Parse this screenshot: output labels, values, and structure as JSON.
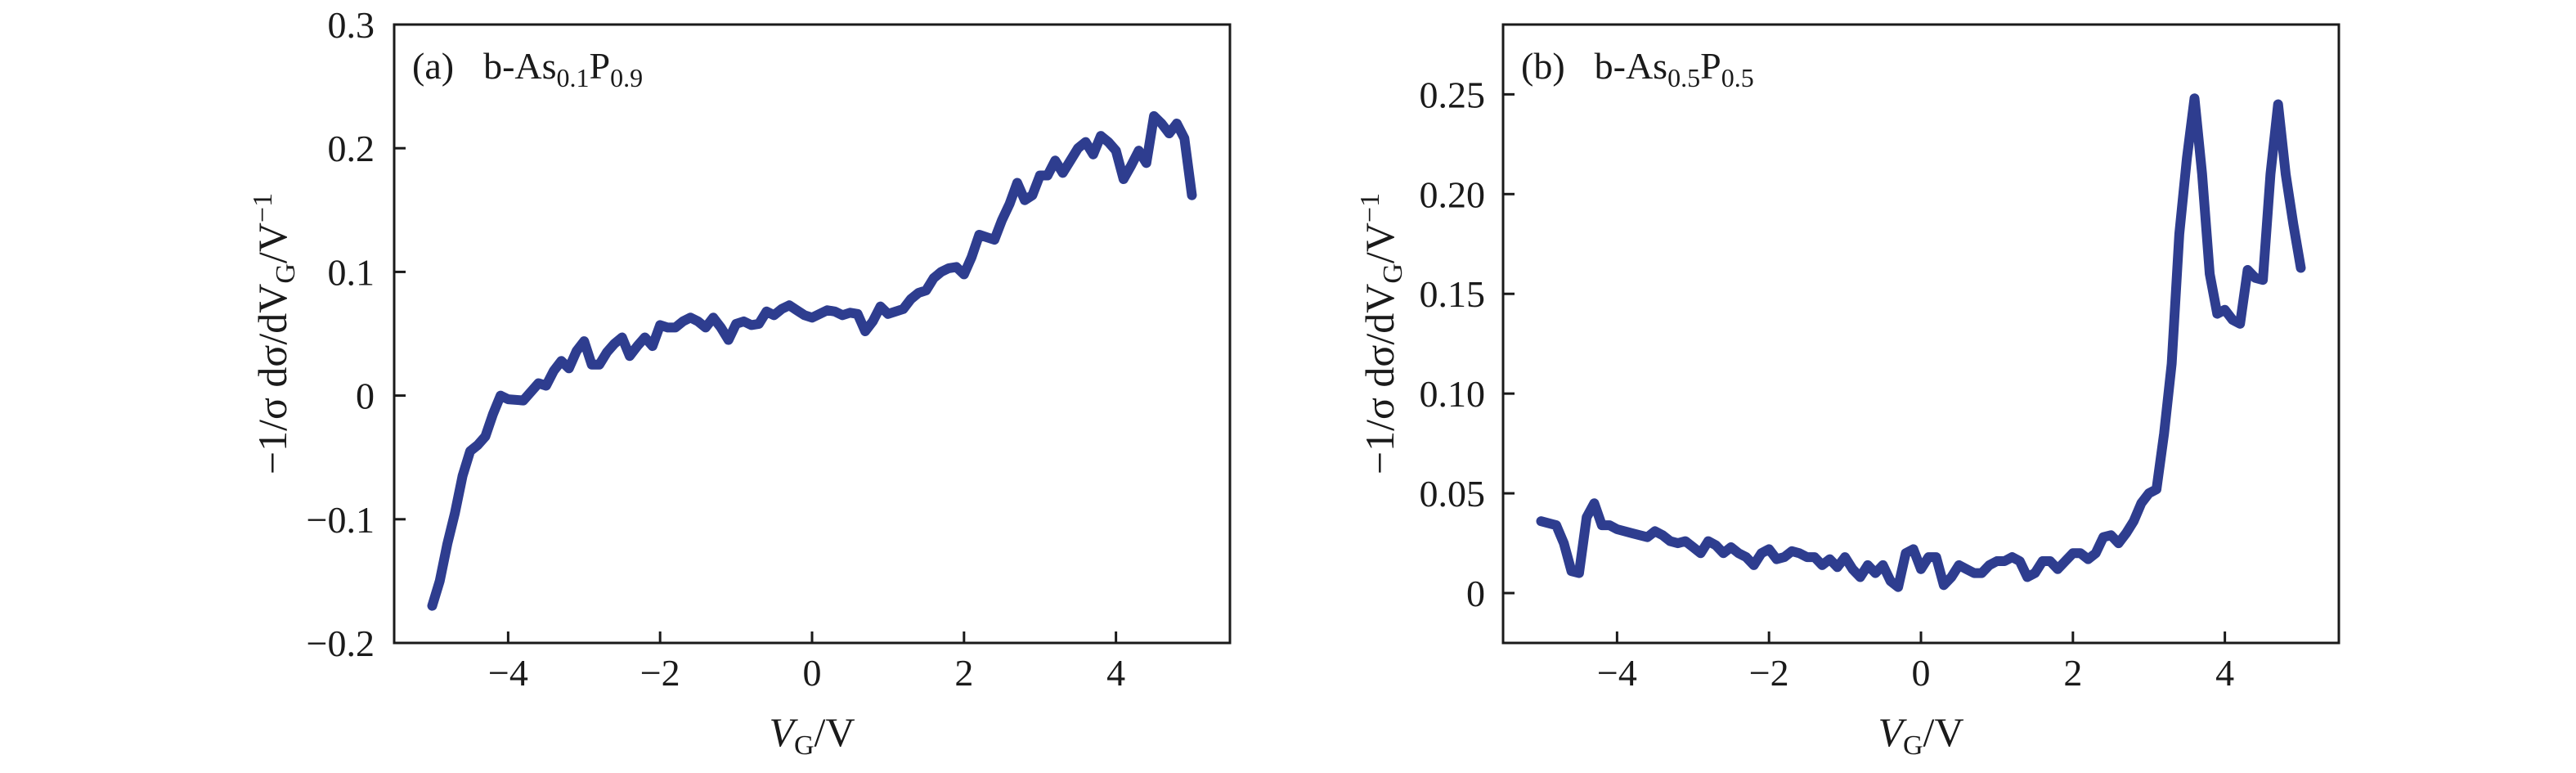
{
  "chart_data": [
    {
      "type": "line",
      "panel": "(a)",
      "annotation": {
        "prefix": "b-As",
        "sub1": "0.1",
        "mid": "P",
        "sub2": "0.9"
      },
      "xlabel": {
        "italic": "V",
        "sub": "G",
        "tail": "/V"
      },
      "ylabel": {
        "pre": "−1/σ dσ/dV",
        "sub": "G",
        "mid": "/V",
        "sup": "−1"
      },
      "xlim": [
        -5.5,
        5.5
      ],
      "ylim": [
        -0.2,
        0.3
      ],
      "xticks": [
        -4,
        -2,
        0,
        2,
        4
      ],
      "xtick_labels": [
        "−4",
        "−2",
        "0",
        "2",
        "4"
      ],
      "yticks": [
        -0.2,
        -0.1,
        0,
        0.1,
        0.2,
        0.3
      ],
      "ytick_labels": [
        "−0.2",
        "−0.1",
        "0",
        "0.1",
        "0.2",
        "0.3"
      ],
      "line_color": "#2e3d8f",
      "series": [
        {
          "x": [
            -5.0,
            -4.9,
            -4.8,
            -4.7,
            -4.6,
            -4.5,
            -4.4,
            -4.3,
            -4.2,
            -4.1,
            -4.0,
            -3.8,
            -3.6,
            -3.5,
            -3.4,
            -3.3,
            -3.2,
            -3.1,
            -3.0,
            -2.9,
            -2.8,
            -2.7,
            -2.6,
            -2.5,
            -2.4,
            -2.3,
            -2.2,
            -2.1,
            -2.0,
            -1.9,
            -1.8,
            -1.7,
            -1.6,
            -1.5,
            -1.4,
            -1.3,
            -1.2,
            -1.1,
            -1.0,
            -0.9,
            -0.8,
            -0.7,
            -0.6,
            -0.5,
            -0.4,
            -0.3,
            -0.2,
            -0.1,
            0.0,
            0.1,
            0.2,
            0.3,
            0.4,
            0.5,
            0.6,
            0.7,
            0.8,
            0.9,
            1.0,
            1.1,
            1.2,
            1.3,
            1.4,
            1.5,
            1.6,
            1.7,
            1.8,
            1.9,
            2.0,
            2.1,
            2.2,
            2.3,
            2.4,
            2.5,
            2.6,
            2.7,
            2.8,
            2.9,
            3.0,
            3.1,
            3.2,
            3.3,
            3.4,
            3.5,
            3.6,
            3.7,
            3.8,
            3.9,
            4.0,
            4.1,
            4.2,
            4.3,
            4.4,
            4.5,
            4.6,
            4.7,
            4.8,
            4.9,
            5.0
          ],
          "y": [
            -0.17,
            -0.15,
            -0.12,
            -0.095,
            -0.065,
            -0.045,
            -0.04,
            -0.033,
            -0.015,
            0.0,
            -0.003,
            -0.004,
            0.01,
            0.008,
            0.02,
            0.028,
            0.022,
            0.036,
            0.044,
            0.025,
            0.025,
            0.035,
            0.042,
            0.047,
            0.032,
            0.04,
            0.047,
            0.04,
            0.057,
            0.055,
            0.055,
            0.06,
            0.063,
            0.06,
            0.055,
            0.063,
            0.055,
            0.045,
            0.058,
            0.06,
            0.057,
            0.058,
            0.068,
            0.065,
            0.07,
            0.073,
            0.069,
            0.065,
            0.063,
            0.066,
            0.069,
            0.068,
            0.065,
            0.067,
            0.066,
            0.052,
            0.06,
            0.072,
            0.066,
            0.068,
            0.07,
            0.078,
            0.083,
            0.085,
            0.095,
            0.1,
            0.103,
            0.104,
            0.098,
            0.112,
            0.13,
            0.128,
            0.126,
            0.142,
            0.155,
            0.172,
            0.158,
            0.162,
            0.178,
            0.178,
            0.19,
            0.18,
            0.19,
            0.2,
            0.205,
            0.195,
            0.21,
            0.205,
            0.198,
            0.175,
            0.186,
            0.198,
            0.188,
            0.226,
            0.22,
            0.212,
            0.22,
            0.208,
            0.162
          ]
        }
      ]
    },
    {
      "type": "line",
      "panel": "(b)",
      "annotation": {
        "prefix": "b-As",
        "sub1": "0.5",
        "mid": "P",
        "sub2": "0.5"
      },
      "xlabel": {
        "italic": "V",
        "sub": "G",
        "tail": "/V"
      },
      "ylabel": {
        "pre": "−1/σ dσ/dV",
        "sub": "G",
        "mid": "/V",
        "sup": "−1"
      },
      "xlim": [
        -5.5,
        5.5
      ],
      "ylim": [
        -0.025,
        0.285
      ],
      "xticks": [
        -4,
        -2,
        0,
        2,
        4
      ],
      "xtick_labels": [
        "−4",
        "−2",
        "0",
        "2",
        "4"
      ],
      "yticks": [
        0,
        0.05,
        0.1,
        0.15,
        0.2,
        0.25
      ],
      "ytick_labels": [
        "0",
        "0.05",
        "0.10",
        "0.15",
        "0.20",
        "0.25"
      ],
      "line_color": "#2e3d8f",
      "series": [
        {
          "x": [
            -5.0,
            -4.8,
            -4.7,
            -4.6,
            -4.5,
            -4.4,
            -4.3,
            -4.2,
            -4.1,
            -4.0,
            -3.8,
            -3.6,
            -3.5,
            -3.4,
            -3.3,
            -3.2,
            -3.1,
            -3.0,
            -2.9,
            -2.8,
            -2.7,
            -2.6,
            -2.5,
            -2.4,
            -2.3,
            -2.2,
            -2.1,
            -2.0,
            -1.9,
            -1.8,
            -1.7,
            -1.6,
            -1.5,
            -1.4,
            -1.3,
            -1.2,
            -1.1,
            -1.0,
            -0.9,
            -0.8,
            -0.7,
            -0.6,
            -0.5,
            -0.4,
            -0.3,
            -0.2,
            -0.1,
            0.0,
            0.1,
            0.2,
            0.3,
            0.4,
            0.5,
            0.6,
            0.7,
            0.8,
            0.9,
            1.0,
            1.1,
            1.2,
            1.3,
            1.4,
            1.5,
            1.6,
            1.7,
            1.8,
            1.9,
            2.0,
            2.1,
            2.2,
            2.3,
            2.4,
            2.5,
            2.6,
            2.7,
            2.8,
            2.9,
            3.0,
            3.1,
            3.2,
            3.3,
            3.4,
            3.5,
            3.6,
            3.7,
            3.8,
            3.9,
            4.0,
            4.1,
            4.2,
            4.3,
            4.4,
            4.5,
            4.6,
            4.7,
            4.8,
            4.9,
            5.0
          ],
          "y": [
            0.036,
            0.034,
            0.025,
            0.011,
            0.01,
            0.038,
            0.045,
            0.034,
            0.034,
            0.032,
            0.03,
            0.028,
            0.031,
            0.029,
            0.026,
            0.025,
            0.026,
            0.023,
            0.02,
            0.026,
            0.024,
            0.02,
            0.023,
            0.02,
            0.018,
            0.014,
            0.02,
            0.022,
            0.017,
            0.018,
            0.021,
            0.02,
            0.018,
            0.018,
            0.014,
            0.017,
            0.013,
            0.018,
            0.012,
            0.008,
            0.014,
            0.01,
            0.014,
            0.006,
            0.003,
            0.02,
            0.022,
            0.012,
            0.018,
            0.018,
            0.004,
            0.008,
            0.014,
            0.012,
            0.01,
            0.01,
            0.014,
            0.016,
            0.016,
            0.018,
            0.016,
            0.008,
            0.01,
            0.016,
            0.016,
            0.012,
            0.016,
            0.02,
            0.02,
            0.017,
            0.02,
            0.028,
            0.029,
            0.025,
            0.03,
            0.036,
            0.045,
            0.05,
            0.052,
            0.08,
            0.115,
            0.18,
            0.218,
            0.248,
            0.21,
            0.16,
            0.14,
            0.142,
            0.137,
            0.135,
            0.162,
            0.158,
            0.157,
            0.21,
            0.245,
            0.21,
            0.185,
            0.163
          ]
        }
      ]
    }
  ]
}
